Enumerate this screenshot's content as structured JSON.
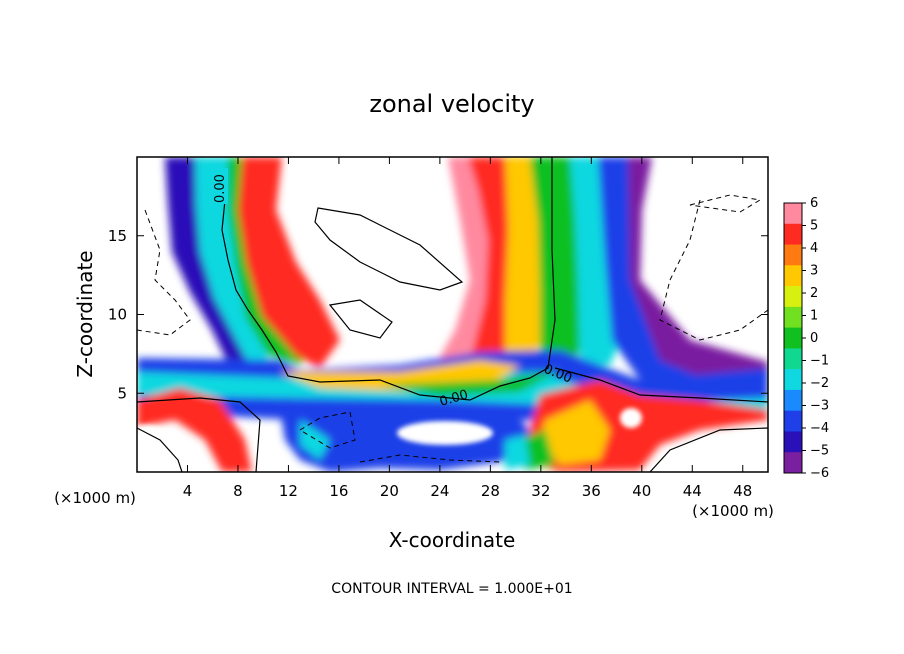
{
  "chart_data": {
    "type": "heatmap",
    "title": "zonal velocity",
    "xlabel": "X-coordinate",
    "ylabel": "Z-coordinate",
    "x_unit_left": "(×1000 m)",
    "x_unit_right": "(×1000 m)",
    "xlim": [
      0,
      50
    ],
    "ylim": [
      0,
      20
    ],
    "x_ticks": [
      "4",
      "8",
      "12",
      "16",
      "20",
      "24",
      "28",
      "32",
      "36",
      "40",
      "44",
      "48"
    ],
    "y_ticks": [
      "5",
      "10",
      "15"
    ],
    "x_tick_values": [
      4,
      8,
      12,
      16,
      20,
      24,
      28,
      32,
      36,
      40,
      44,
      48
    ],
    "y_tick_values": [
      5,
      10,
      15
    ],
    "colorbar": {
      "levels": [
        -6,
        -5,
        -4,
        -3,
        -2,
        -1,
        0,
        1,
        2,
        3,
        4,
        5,
        6
      ],
      "labels": [
        "6",
        "5",
        "4",
        "3",
        "2",
        "1",
        "0",
        "−1",
        "−2",
        "−3",
        "−4",
        "−5",
        "−6"
      ],
      "colors": [
        "#7a1fa0",
        "#2a10b8",
        "#1f3fe8",
        "#1a8aff",
        "#10d8e0",
        "#10d890",
        "#10c020",
        "#70e020",
        "#d8f010",
        "#ffc800",
        "#ff7a10",
        "#ff2a20",
        "#ff8aa0"
      ]
    },
    "contour_labels": [
      "0.00",
      "0.00",
      "0.00"
    ],
    "contour_interval_text": "CONTOUR INTERVAL = 1.000E+01"
  }
}
